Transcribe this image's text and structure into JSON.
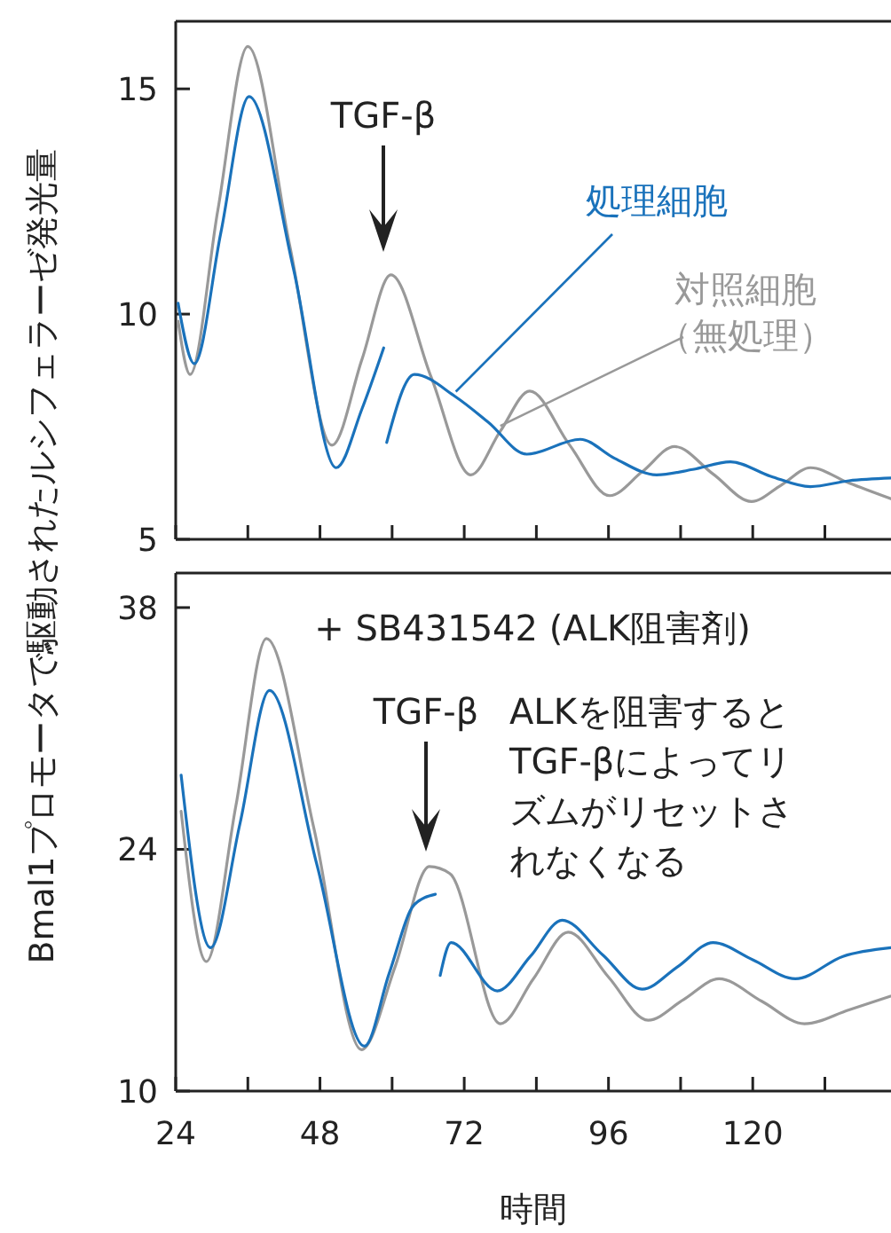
{
  "chart_data": [
    {
      "type": "line",
      "ylabel": "Bmal1プロモータで駆動されたルシフェラーゼ発光量",
      "xlim": [
        24,
        143
      ],
      "ylim": [
        5,
        16.5
      ],
      "yticks": [
        5,
        10,
        15
      ],
      "xticks": [
        {
          "value": 24,
          "label": null
        },
        {
          "value": 36,
          "label": null
        },
        {
          "value": 48,
          "label": null
        },
        {
          "value": 60,
          "label": null
        },
        {
          "value": 72,
          "label": null
        },
        {
          "value": 84,
          "label": null
        },
        {
          "value": 96,
          "label": null
        },
        {
          "value": 108,
          "label": null
        },
        {
          "value": 120,
          "label": null
        },
        {
          "value": 132,
          "label": null
        }
      ],
      "tick_labels": "y",
      "annotations": [
        "TGF-β"
      ],
      "series": [
        {
          "name": "対照細胞（無処理）",
          "color": "#999999",
          "x": [
            24.4,
            26.4,
            31,
            36,
            43,
            50,
            55,
            59.8,
            66.5,
            73.1,
            78,
            82.9,
            89.5,
            96.2,
            101.6,
            107,
            113.4,
            119.8,
            124.7,
            129.6,
            136,
            143
          ],
          "values": [
            9.84,
            8.66,
            12.3,
            15.94,
            11.5,
            7.09,
            9.0,
            10.87,
            8.6,
            6.43,
            7.4,
            8.29,
            7.1,
            5.97,
            6.5,
            7.06,
            6.45,
            5.84,
            6.2,
            6.59,
            6.25,
            5.9
          ]
        },
        {
          "name": "処理細胞",
          "color": "#1a72bb",
          "x": [
            24.4,
            27.1,
            31.5,
            36.2,
            43.6,
            50.7,
            55,
            58.6,
            58.8,
            59.1,
            63.7,
            70.6,
            76,
            82.4,
            91.3,
            97,
            104,
            110,
            116.3,
            123,
            129.6,
            136,
            143
          ],
          "values": [
            10.24,
            8.9,
            11.8,
            14.83,
            11.0,
            6.59,
            7.9,
            9.25,
            null,
            7.15,
            8.66,
            8.16,
            7.6,
            6.89,
            7.22,
            6.8,
            6.43,
            6.55,
            6.72,
            6.4,
            6.17,
            6.3,
            6.36
          ]
        }
      ]
    },
    {
      "type": "line",
      "xlabel": "時間",
      "xlim": [
        24,
        143
      ],
      "ylim": [
        10,
        40
      ],
      "yticks": [
        10,
        24,
        38
      ],
      "xticks": [
        24,
        {
          "value": 36,
          "label": null
        },
        48,
        {
          "value": 60,
          "label": null
        },
        72,
        {
          "value": 84,
          "label": null
        },
        96,
        {
          "value": 108,
          "label": null
        },
        120,
        {
          "value": 132,
          "label": null
        }
      ],
      "annotations": [
        "+ SB431542 (ALK阻害剤)",
        "TGF-β",
        "ALKを阻害するとTGF-βによってリズムがリセットされなくなる"
      ],
      "series": [
        {
          "color": "#999999",
          "x": [
            24.9,
            29.1,
            34,
            39.1,
            47,
            54.9,
            60.5,
            66.2,
            69.6,
            78,
            83.5,
            89.3,
            96,
            102.6,
            108.5,
            114.4,
            121.5,
            128.6,
            136,
            143
          ],
          "values": [
            26.2,
            17.5,
            26.5,
            36.2,
            25.2,
            12.4,
            17.2,
            23.0,
            22.6,
            13.9,
            16.5,
            19.2,
            16.6,
            14.1,
            15.3,
            16.5,
            15.2,
            13.9,
            14.7,
            15.5
          ]
        },
        {
          "color": "#1a72bb",
          "x": [
            24.9,
            29.8,
            34.7,
            39.6,
            47.5,
            55.4,
            59.5,
            63.7,
            67.2,
            67.6,
            68,
            69.8,
            77.5,
            83,
            88.3,
            95,
            101.6,
            107.5,
            113.4,
            120,
            127.1,
            135,
            143
          ],
          "values": [
            28.3,
            18.3,
            25.5,
            33.2,
            23.1,
            12.6,
            16.8,
            20.8,
            21.4,
            null,
            16.7,
            18.6,
            15.8,
            17.8,
            19.9,
            17.9,
            15.9,
            17.2,
            18.6,
            17.6,
            16.5,
            17.8,
            18.3
          ]
        }
      ]
    }
  ]
}
